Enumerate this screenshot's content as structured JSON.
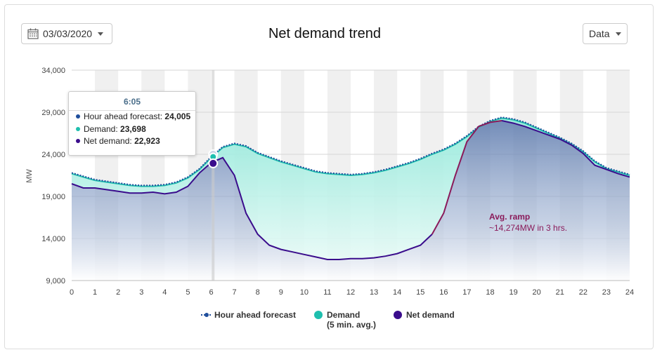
{
  "header": {
    "date_value": "03/03/2020",
    "title": "Net demand trend",
    "data_label": "Data"
  },
  "tooltip": {
    "time": "6:05",
    "rows": [
      {
        "label": "Hour ahead forecast:",
        "value": "24,005",
        "color": "#1f4e9c"
      },
      {
        "label": "Demand:",
        "value": "23,698",
        "color": "#1fbfae"
      },
      {
        "label": "Net demand:",
        "value": "22,923",
        "color": "#3a0c8c"
      }
    ]
  },
  "annotation": {
    "title": "Avg. ramp",
    "text": "~14,274MW in 3 hrs."
  },
  "legend": {
    "forecast": "Hour ahead forecast",
    "demand": "Demand",
    "demand_sub": "(5 min. avg.)",
    "net": "Net demand"
  },
  "colors": {
    "forecast": "#1f4e9c",
    "demand": "#1fbfae",
    "net": "#3a0c8c",
    "ramp": "#8a1a5a"
  },
  "chart_data": {
    "type": "line",
    "title": "Net demand trend",
    "ylabel": "MW",
    "xlabel": "",
    "xlim": [
      0,
      24
    ],
    "ylim": [
      9000,
      34000
    ],
    "xticks": [
      "0",
      "1",
      "2",
      "3",
      "4",
      "5",
      "6",
      "7",
      "8",
      "9",
      "10",
      "11",
      "12",
      "13",
      "14",
      "15",
      "16",
      "17",
      "18",
      "19",
      "20",
      "21",
      "22",
      "23",
      "24"
    ],
    "yticks": [
      "9,000",
      "14,000",
      "19,000",
      "24,000",
      "29,000",
      "34,000"
    ],
    "x": [
      0,
      0.5,
      1,
      1.5,
      2,
      2.5,
      3,
      3.5,
      4,
      4.5,
      5,
      5.5,
      6,
      6.5,
      7,
      7.5,
      8,
      8.5,
      9,
      9.5,
      10,
      10.5,
      11,
      11.5,
      12,
      12.5,
      13,
      13.5,
      14,
      14.5,
      15,
      15.5,
      16,
      16.5,
      17,
      17.5,
      18,
      18.5,
      19,
      19.5,
      20,
      20.5,
      21,
      21.5,
      22,
      22.5,
      23,
      23.5,
      24
    ],
    "series": [
      {
        "name": "Hour ahead forecast",
        "values": [
          21800,
          21400,
          21000,
          20800,
          20600,
          20400,
          20300,
          20300,
          20400,
          20700,
          21300,
          22300,
          23700,
          24900,
          25300,
          25000,
          24200,
          23700,
          23200,
          22800,
          22400,
          22000,
          21800,
          21700,
          21600,
          21700,
          21900,
          22200,
          22600,
          23000,
          23500,
          24100,
          24600,
          25300,
          26200,
          27300,
          28000,
          28400,
          28200,
          27800,
          27200,
          26600,
          26000,
          25300,
          24400,
          23200,
          22400,
          22000,
          21600
        ]
      },
      {
        "name": "Demand",
        "values": [
          21700,
          21300,
          20900,
          20700,
          20500,
          20300,
          20200,
          20200,
          20300,
          20600,
          21200,
          22200,
          23600,
          24800,
          25200,
          24900,
          24100,
          23600,
          23100,
          22700,
          22300,
          21900,
          21700,
          21600,
          21500,
          21600,
          21800,
          22100,
          22500,
          22900,
          23400,
          24000,
          24500,
          25200,
          26100,
          27200,
          27900,
          28300,
          28100,
          27700,
          27100,
          26500,
          25900,
          25200,
          24300,
          23100,
          22300,
          21900,
          21500
        ]
      },
      {
        "name": "Net demand",
        "values": [
          20500,
          20000,
          20000,
          19800,
          19600,
          19400,
          19400,
          19500,
          19300,
          19500,
          20200,
          21800,
          23000,
          23600,
          21500,
          17000,
          14500,
          13200,
          12700,
          12400,
          12100,
          11800,
          11500,
          11500,
          11600,
          11600,
          11700,
          11900,
          12200,
          12700,
          13200,
          14500,
          17000,
          21500,
          25500,
          27300,
          27800,
          28000,
          27700,
          27300,
          26800,
          26300,
          25800,
          25100,
          24100,
          22700,
          22200,
          21700,
          21300
        ]
      }
    ],
    "grid": true,
    "legend_position": "bottom"
  }
}
